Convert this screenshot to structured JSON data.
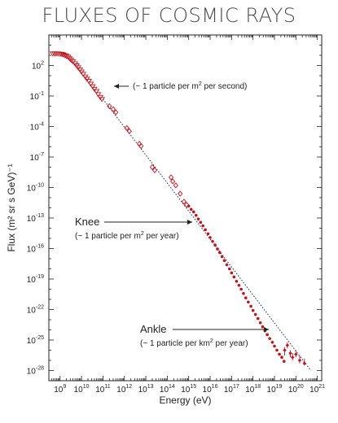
{
  "title": "FLUXES OF COSMIC RAYS",
  "chart_data": {
    "type": "scatter",
    "title": "FLUXES OF COSMIC RAYS",
    "xlabel": "Energy (eV)",
    "ylabel": "Flux (m² sr s GeV)⁻¹",
    "xscale": "log",
    "yscale": "log",
    "xlim": [
      300000000.0,
      1.6e+21
    ],
    "ylim": [
      1e-29,
      100000.0
    ],
    "grid": false,
    "colors": {
      "data": "#c0141c",
      "reference_line": "#1f3a6e"
    },
    "x_ticks": [
      {
        "value": 1000000000.0,
        "mant": "10",
        "exp": "9"
      },
      {
        "value": 10000000000.0,
        "mant": "10",
        "exp": "10"
      },
      {
        "value": 100000000000.0,
        "mant": "10",
        "exp": "11"
      },
      {
        "value": 1000000000000.0,
        "mant": "10",
        "exp": "12"
      },
      {
        "value": 10000000000000.0,
        "mant": "10",
        "exp": "13"
      },
      {
        "value": 100000000000000.0,
        "mant": "10",
        "exp": "14"
      },
      {
        "value": 1000000000000000.0,
        "mant": "10",
        "exp": "15"
      },
      {
        "value": 1e+16,
        "mant": "10",
        "exp": "16"
      },
      {
        "value": 1e+17,
        "mant": "10",
        "exp": "17"
      },
      {
        "value": 1e+18,
        "mant": "10",
        "exp": "18"
      },
      {
        "value": 1e+19,
        "mant": "10",
        "exp": "19"
      },
      {
        "value": 1e+20,
        "mant": "10",
        "exp": "20"
      },
      {
        "value": 1e+21,
        "mant": "10",
        "exp": "21"
      }
    ],
    "y_ticks": [
      {
        "value": 100.0,
        "mant": "10",
        "exp": "2"
      },
      {
        "value": 0.1,
        "mant": "10",
        "exp": "-1"
      },
      {
        "value": 0.0001,
        "mant": "10",
        "exp": "-4"
      },
      {
        "value": 1e-07,
        "mant": "10",
        "exp": "-7"
      },
      {
        "value": 1e-10,
        "mant": "10",
        "exp": "-10"
      },
      {
        "value": 1e-13,
        "mant": "10",
        "exp": "-13"
      },
      {
        "value": 1e-16,
        "mant": "10",
        "exp": "-16"
      },
      {
        "value": 1e-19,
        "mant": "10",
        "exp": "-19"
      },
      {
        "value": 1e-22,
        "mant": "10",
        "exp": "-22"
      },
      {
        "value": 1e-25,
        "mant": "10",
        "exp": "-25"
      },
      {
        "value": 1e-28,
        "mant": "10",
        "exp": "-28"
      }
    ],
    "reference_line": {
      "points": [
        [
          100000000000.0,
          0.05
        ],
        [
          5e+20,
          1e-28
        ]
      ]
    },
    "series": [
      {
        "marker": "triangle",
        "x": [
          450000000.0,
          550000000.0,
          650000000.0,
          800000000.0,
          1000000000.0,
          1200000000.0,
          1400000000.0,
          1700000000.0,
          2000000000.0,
          2400000000.0,
          2800000000.0,
          3300000000.0,
          4000000000.0,
          5000000000.0,
          6000000000.0,
          7000000000.0,
          8500000000.0,
          10000000000.0,
          12000000000.0,
          15000000000.0,
          18000000000.0,
          22000000000.0,
          27000000000.0,
          33000000000.0,
          40000000000.0,
          50000000000.0,
          60000000000.0,
          75000000000.0,
          90000000000.0
        ],
        "y": [
          1500,
          1500,
          1500,
          1500,
          1400,
          1350,
          1200,
          1000,
          850,
          700,
          500,
          350,
          250,
          160,
          100,
          65,
          40,
          25,
          15,
          8,
          5,
          3,
          1.6,
          0.9,
          0.5,
          0.3,
          0.15,
          0.08,
          0.05
        ]
      },
      {
        "marker": "diamond",
        "x": [
          200000000000.0,
          300000000000.0,
          400000000000.0,
          1300000000000.0,
          1700000000000.0,
          5000000000000.0,
          6000000000000.0,
          20000000000000.0,
          26000000000000.0,
          150000000000000.0,
          180000000000000.0,
          250000000000000.0,
          400000000000000.0,
          600000000000000.0,
          800000000000000.0
        ],
        "y": [
          0.01,
          0.005,
          0.0025,
          7e-05,
          3.5e-05,
          2e-06,
          1.2e-06,
          1e-08,
          5e-09,
          1e-09,
          4e-10,
          1.6e-10,
          2.5e-11,
          4e-12,
          2e-12
        ]
      },
      {
        "marker": "dot",
        "x": [
          1000000000000000.0,
          1300000000000000.0,
          1700000000000000.0,
          2200000000000000.0,
          2800000000000000.0,
          3600000000000000.0,
          4600000000000000.0,
          6000000000000000.0,
          8000000000000000.0,
          1e+16,
          1.3e+16,
          1.7e+16,
          2.2e+16,
          2.8e+16,
          3.6e+16,
          4.6e+16,
          6e+16,
          8e+16,
          1e+17,
          1.3e+17,
          1.7e+17,
          2.2e+17,
          2.8e+17,
          3.6e+17,
          4.6e+17,
          6e+17,
          8e+17,
          1e+18,
          1.3e+18,
          1.7e+18,
          2.2e+18,
          2.8e+18,
          3.6e+18,
          4.6e+18,
          6e+18,
          8e+18,
          1e+19,
          1.3e+19,
          1.7e+19,
          2.2e+19,
          2.8e+19
        ],
        "y": [
          1.5e-12,
          7e-13,
          4e-13,
          1.8e-13,
          8e-14,
          3.8e-14,
          1.7e-14,
          7e-15,
          2.8e-15,
          1.2e-15,
          5e-16,
          2.2e-16,
          9e-17,
          4e-17,
          1.6e-17,
          6.5e-18,
          2.5e-18,
          1e-18,
          4e-19,
          1.6e-19,
          6e-20,
          2.4e-20,
          1e-20,
          3.8e-21,
          1.4e-21,
          5.5e-22,
          2.1e-22,
          8e-23,
          3.2e-23,
          1.3e-23,
          5e-24,
          2e-24,
          8e-25,
          3.4e-25,
          1.4e-25,
          6e-26,
          2.5e-26,
          1e-26,
          4e-27,
          2e-27,
          8e-28
        ]
      },
      {
        "marker": "errorbar",
        "x": [
          3e+19,
          4e+19,
          5.5e+19,
          7e+19,
          1e+20,
          1.5e+20,
          2.5e+20
        ],
        "y": [
          1e-26,
          3e-26,
          5e-27,
          2e-27,
          4e-27,
          1e-27,
          5e-28
        ],
        "err_lo": [
          3e-27,
          1.5e-26,
          2e-27,
          1e-27,
          2e-27,
          5e-28,
          3e-28
        ],
        "err_hi": [
          2e-26,
          6e-26,
          1e-26,
          5e-27,
          1e-26,
          3e-27,
          1.5e-27
        ]
      }
    ],
    "annotations": [
      {
        "key": "second",
        "text": "(~ 1 particle per m",
        "sup": "2",
        "tail": " per second)",
        "target": [
          110000000000.0,
          0.05
        ]
      },
      {
        "key": "knee",
        "label": "Knee",
        "text": "(~ 1 particle per m",
        "sup": "2",
        "tail": " per year)",
        "target": [
          800000000000000.0,
          1.5e-13
        ]
      },
      {
        "key": "ankle",
        "label": "Ankle",
        "text": "(~ 1 particle per km",
        "sup": "2",
        "tail": " per year)",
        "target": [
          6e+18,
          2e-24
        ]
      }
    ]
  }
}
